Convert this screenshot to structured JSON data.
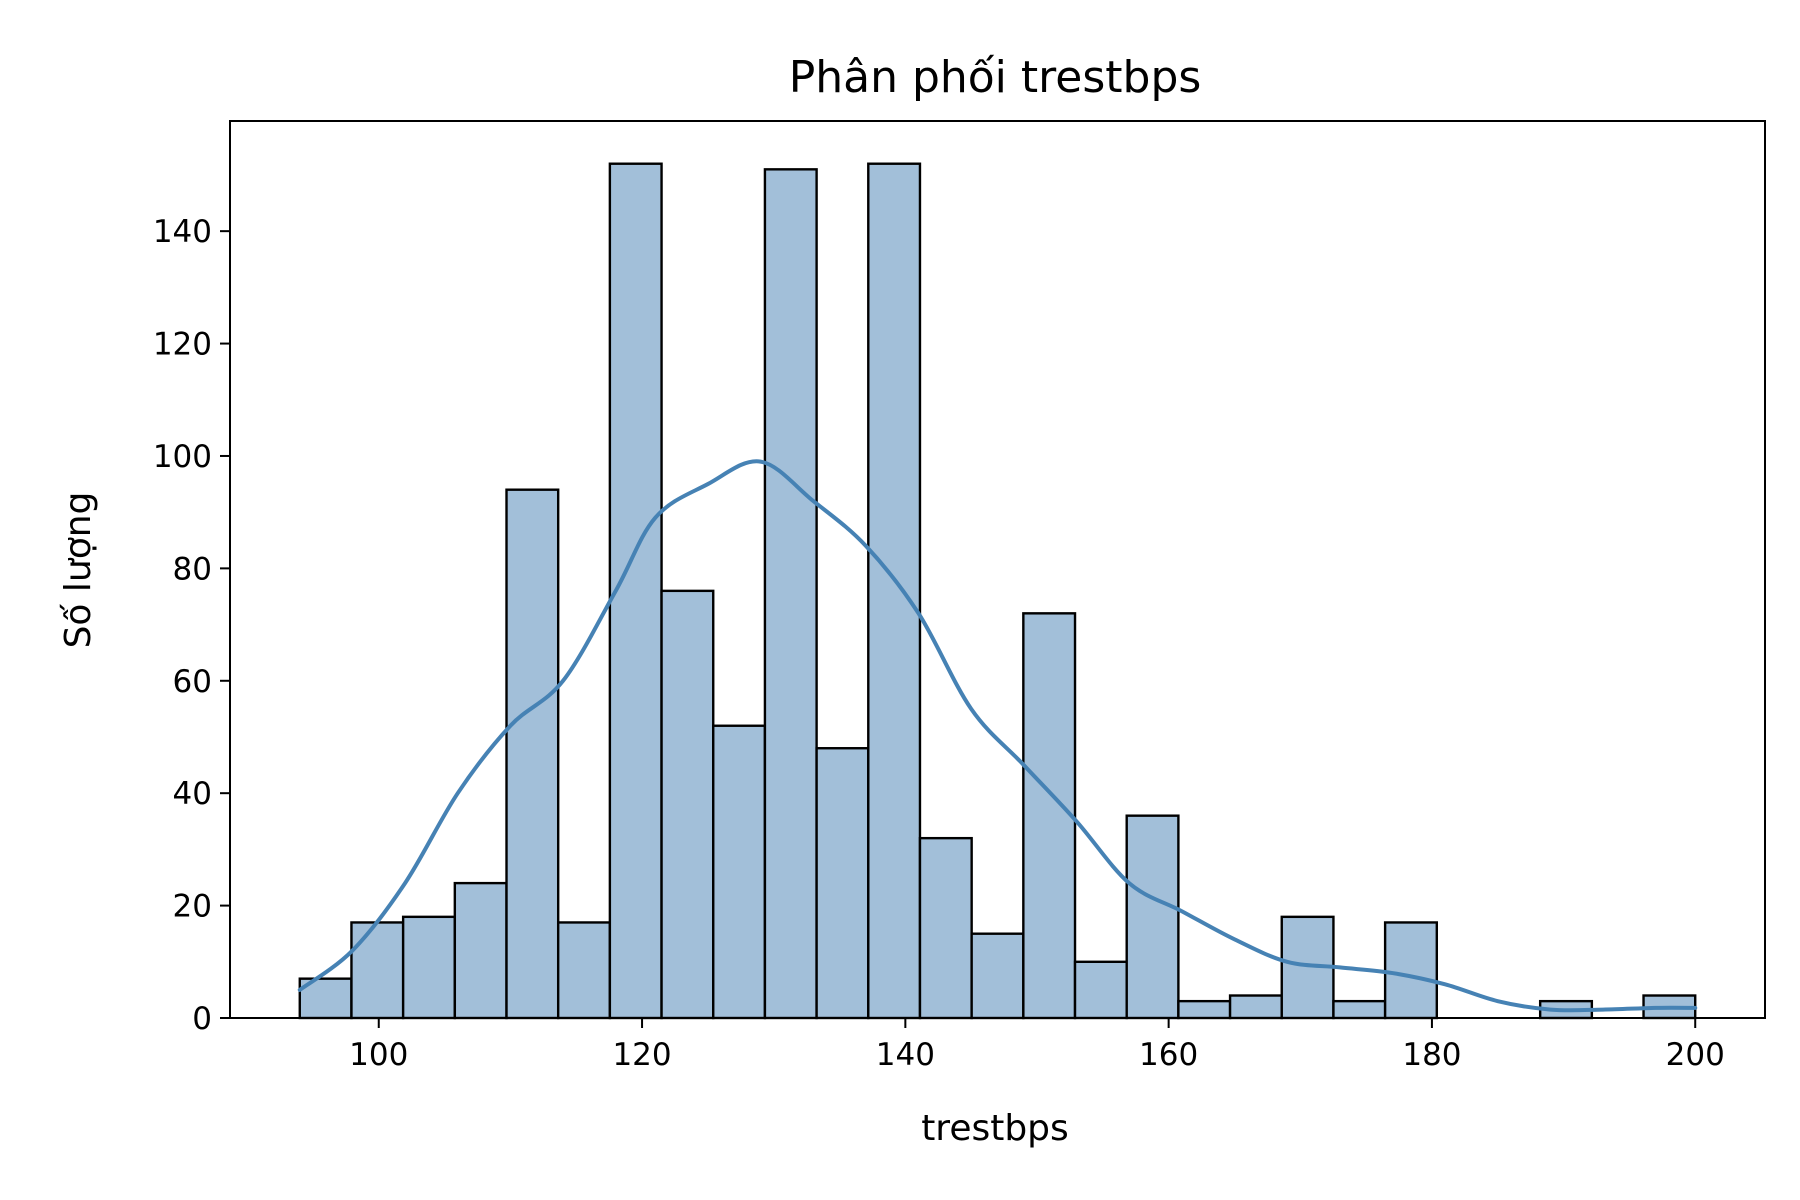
{
  "chart_data": {
    "type": "bar",
    "title": "Phân phối trestbps",
    "xlabel": "trestbps",
    "ylabel": "Số lượng",
    "xlim": [
      88.7,
      205.3
    ],
    "ylim": [
      0,
      159.6
    ],
    "xticks": [
      100,
      120,
      140,
      160,
      180,
      200
    ],
    "yticks": [
      0,
      20,
      40,
      60,
      80,
      100,
      120,
      140
    ],
    "bin_start": 94,
    "bin_width": 3.9259,
    "bin_counts": [
      7,
      17,
      18,
      24,
      94,
      17,
      152,
      76,
      52,
      151,
      48,
      152,
      32,
      15,
      72,
      10,
      36,
      3,
      4,
      18,
      3,
      17,
      0,
      0,
      3,
      0,
      4
    ],
    "kde": {
      "x": [
        94,
        98,
        102,
        106,
        110,
        114,
        118,
        121,
        125,
        129,
        133,
        137,
        141,
        145,
        149,
        153,
        157,
        161,
        165,
        169,
        173,
        177,
        181,
        185,
        189,
        193,
        197,
        200
      ],
      "y": [
        5,
        12,
        24,
        40,
        52,
        60,
        76,
        89,
        95,
        99,
        92,
        84,
        72,
        55,
        45,
        35,
        24,
        19,
        14,
        10,
        9,
        8,
        6,
        3,
        1.5,
        1.5,
        1.8,
        1.8
      ]
    },
    "grid": false,
    "legend": "none",
    "colors": {
      "bar_fill": "#a2bfd9",
      "bar_edge": "#000000",
      "kde_line": "#4682b4"
    }
  }
}
